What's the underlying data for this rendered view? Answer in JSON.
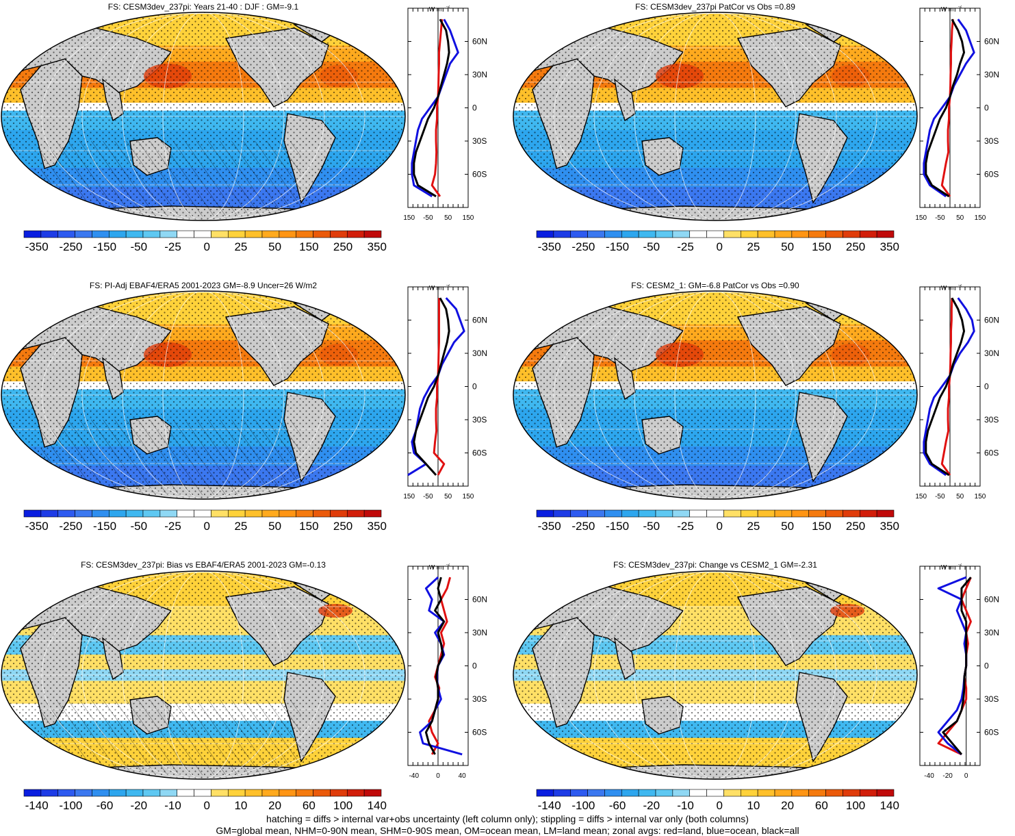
{
  "footer": {
    "line1": "hatching = diffs > internal var+obs uncertainty (left column only); stippling = diffs > internal var only (both columns)",
    "line2": "GM=global mean, NHM=0-90N mean, SHM=0-90S mean, OM=ocean mean, LM=land mean; zonal avgs: red=land, blue=ocean, black=all"
  },
  "colorbars": {
    "absolute": {
      "labels": [
        "-350",
        "-250",
        "-150",
        "-50",
        "-25",
        "0",
        "25",
        "50",
        "150",
        "250",
        "350"
      ],
      "colors": [
        "#0a1ee0",
        "#1e3ce6",
        "#2d5af0",
        "#3b78f0",
        "#2f8ff0",
        "#2da6ee",
        "#3fb8f0",
        "#5ec8f2",
        "#8fd8f4",
        "#ffffff",
        "#ffffff",
        "#ffe066",
        "#ffd23a",
        "#ffc02a",
        "#ffaa1e",
        "#ff9514",
        "#f57a0e",
        "#eb5a0a",
        "#e03c0a",
        "#d21e0a",
        "#c00a0a"
      ]
    },
    "difference": {
      "labels": [
        "-140",
        "-100",
        "-60",
        "-20",
        "-10",
        "0",
        "10",
        "20",
        "60",
        "100",
        "140"
      ],
      "colors": [
        "#0a1ee0",
        "#1e3ce6",
        "#2d5af0",
        "#3b78f0",
        "#2f8ff0",
        "#2da6ee",
        "#3fb8f0",
        "#5ec8f2",
        "#8fd8f4",
        "#ffffff",
        "#ffffff",
        "#ffe066",
        "#ffd23a",
        "#ffc02a",
        "#ffaa1e",
        "#ff9514",
        "#f57a0e",
        "#eb5a0a",
        "#e03c0a",
        "#d21e0a",
        "#c00a0a"
      ]
    }
  },
  "zonal_axis": {
    "unit": "W m",
    "unit_sup": "-2",
    "lat_labels": [
      "60N",
      "30N",
      "0",
      "30S",
      "60S"
    ]
  },
  "chart_data": [
    {
      "type": "heatmap",
      "title": "FS: CESM3dev_237pi: Years 21-40 : DJF : GM=-9.1",
      "colorbar": "absolute",
      "zonal_xticks": [
        "-150",
        "-50",
        "50",
        "150"
      ],
      "zonal_xlim": [
        -150,
        150
      ],
      "lat": [
        80,
        70,
        60,
        50,
        40,
        30,
        20,
        10,
        0,
        -10,
        -20,
        -30,
        -40,
        -50,
        -60,
        -70,
        -80
      ],
      "series": [
        {
          "name": "land",
          "color": "#e01010",
          "values": [
            20,
            15,
            10,
            5,
            5,
            3,
            2,
            0,
            -5,
            -5,
            -10,
            -10,
            -8,
            -10,
            -15,
            -30,
            10
          ]
        },
        {
          "name": "ocean",
          "color": "#1010e0",
          "values": [
            30,
            60,
            80,
            100,
            60,
            40,
            20,
            0,
            -40,
            -80,
            -100,
            -110,
            -120,
            -130,
            -130,
            -120,
            -30
          ]
        },
        {
          "name": "all",
          "color": "#000000",
          "values": [
            10,
            40,
            50,
            55,
            45,
            30,
            15,
            0,
            -20,
            -50,
            -70,
            -90,
            -110,
            -120,
            -120,
            -100,
            -10
          ]
        }
      ]
    },
    {
      "type": "heatmap",
      "title": "FS: CESM3dev_237pi PatCor vs Obs =0.89",
      "colorbar": "absolute",
      "zonal_xticks": [
        "-150",
        "-50",
        "50",
        "150"
      ],
      "zonal_xlim": [
        -150,
        150
      ],
      "lat": [
        80,
        70,
        60,
        50,
        40,
        30,
        20,
        10,
        0,
        -10,
        -20,
        -30,
        -40,
        -50,
        -60,
        -70,
        -80
      ],
      "series": [
        {
          "name": "land",
          "color": "#e01010",
          "values": [
            15,
            10,
            8,
            5,
            5,
            3,
            2,
            0,
            -5,
            -5,
            -10,
            -10,
            -8,
            -20,
            -30,
            -40,
            0
          ]
        },
        {
          "name": "ocean",
          "color": "#1010e0",
          "values": [
            40,
            80,
            100,
            120,
            80,
            50,
            20,
            0,
            -40,
            -80,
            -100,
            -110,
            -120,
            -130,
            -130,
            -100,
            -20
          ]
        },
        {
          "name": "all",
          "color": "#000000",
          "values": [
            10,
            40,
            60,
            70,
            50,
            35,
            15,
            0,
            -20,
            -50,
            -70,
            -90,
            -110,
            -120,
            -120,
            -90,
            -5
          ]
        }
      ]
    },
    {
      "type": "heatmap",
      "title": "FS: PI-Adj EBAF4/ERA5 2001-2023 GM=-8.9 Uncer=26 W/m2",
      "colorbar": "absolute",
      "zonal_xticks": [
        "-150",
        "-50",
        "50",
        "150"
      ],
      "zonal_xlim": [
        -150,
        150
      ],
      "lat": [
        80,
        70,
        60,
        50,
        40,
        30,
        20,
        10,
        0,
        -10,
        -20,
        -30,
        -40,
        -50,
        -60,
        -70,
        -80
      ],
      "series": [
        {
          "name": "land",
          "color": "#e01010",
          "values": [
            5,
            5,
            5,
            5,
            5,
            3,
            2,
            0,
            -5,
            -5,
            -10,
            -10,
            -8,
            -15,
            -20,
            30,
            0
          ]
        },
        {
          "name": "ocean",
          "color": "#1010e0",
          "values": [
            40,
            90,
            110,
            130,
            80,
            50,
            20,
            0,
            -40,
            -70,
            -90,
            -100,
            -110,
            -130,
            -120,
            -60,
            -150
          ]
        },
        {
          "name": "all",
          "color": "#000000",
          "values": [
            10,
            40,
            50,
            55,
            45,
            30,
            15,
            0,
            -20,
            -50,
            -70,
            -90,
            -110,
            -120,
            -110,
            -60,
            -10
          ]
        }
      ]
    },
    {
      "type": "heatmap",
      "title": "FS: CESM2_1: GM=-6.8 PatCor vs Obs =0.90",
      "colorbar": "absolute",
      "zonal_xticks": [
        "-150",
        "-50",
        "50",
        "150"
      ],
      "zonal_xlim": [
        -150,
        150
      ],
      "lat": [
        80,
        70,
        60,
        50,
        40,
        30,
        20,
        10,
        0,
        -10,
        -20,
        -30,
        -40,
        -50,
        -60,
        -70,
        -80
      ],
      "series": [
        {
          "name": "land",
          "color": "#e01010",
          "values": [
            10,
            8,
            8,
            5,
            5,
            3,
            2,
            0,
            -5,
            -5,
            -10,
            -10,
            -8,
            -20,
            -30,
            -40,
            0
          ]
        },
        {
          "name": "ocean",
          "color": "#1010e0",
          "values": [
            40,
            80,
            110,
            120,
            90,
            50,
            20,
            0,
            -40,
            -80,
            -100,
            -110,
            -120,
            -130,
            -130,
            -100,
            -20
          ]
        },
        {
          "name": "all",
          "color": "#000000",
          "values": [
            10,
            40,
            60,
            70,
            55,
            35,
            15,
            0,
            -20,
            -50,
            -70,
            -90,
            -110,
            -120,
            -120,
            -90,
            -5
          ]
        }
      ]
    },
    {
      "type": "heatmap",
      "title": "FS: CESM3dev_237pi: Bias vs EBAF4/ERA5 2001-2023 GM=-0.13",
      "colorbar": "difference",
      "zonal_xticks": [
        "-40",
        "0",
        "40"
      ],
      "zonal_xlim": [
        -50,
        50
      ],
      "lat": [
        80,
        70,
        60,
        50,
        40,
        30,
        20,
        10,
        0,
        -10,
        -20,
        -30,
        -40,
        -50,
        -60,
        -70,
        -80
      ],
      "series": [
        {
          "name": "land",
          "color": "#e01010",
          "values": [
            20,
            15,
            5,
            10,
            15,
            5,
            10,
            5,
            0,
            -5,
            2,
            0,
            -5,
            -15,
            -10,
            0,
            -10
          ]
        },
        {
          "name": "ocean",
          "color": "#1010e0",
          "values": [
            0,
            -20,
            -10,
            -15,
            10,
            -5,
            5,
            10,
            0,
            -2,
            0,
            5,
            -5,
            -10,
            -30,
            -25,
            40
          ]
        },
        {
          "name": "all",
          "color": "#000000",
          "values": [
            5,
            0,
            5,
            -5,
            10,
            0,
            5,
            8,
            0,
            -3,
            0,
            0,
            -5,
            -10,
            -20,
            -15,
            -5
          ]
        }
      ]
    },
    {
      "type": "heatmap",
      "title": "FS: CESM3dev_237pi: Change vs CESM2_1 GM=-2.31",
      "colorbar": "difference",
      "zonal_xticks": [
        "-40",
        "-20",
        "0"
      ],
      "zonal_xlim": [
        -50,
        15
      ],
      "lat": [
        80,
        70,
        60,
        50,
        40,
        30,
        20,
        10,
        0,
        -10,
        -20,
        -30,
        -40,
        -50,
        -60,
        -70,
        -80
      ],
      "series": [
        {
          "name": "land",
          "color": "#e01010",
          "values": [
            5,
            0,
            -5,
            0,
            5,
            0,
            2,
            0,
            0,
            -2,
            0,
            0,
            -5,
            -10,
            -20,
            -30,
            -5
          ]
        },
        {
          "name": "ocean",
          "color": "#1010e0",
          "values": [
            0,
            -30,
            -5,
            -10,
            -5,
            0,
            -2,
            0,
            0,
            -2,
            -3,
            -5,
            -10,
            -20,
            -30,
            -20,
            -5
          ]
        },
        {
          "name": "all",
          "color": "#000000",
          "values": [
            5,
            -5,
            -5,
            -5,
            0,
            0,
            0,
            0,
            0,
            -2,
            -2,
            -3,
            -5,
            -10,
            -25,
            -15,
            -5
          ]
        }
      ]
    }
  ]
}
